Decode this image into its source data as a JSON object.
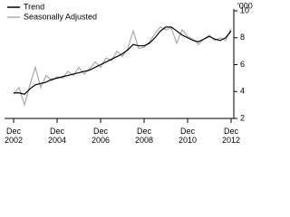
{
  "chart_data": {
    "type": "line",
    "y_label": "'000",
    "x": [
      2002.917,
      2003.167,
      2003.417,
      2003.667,
      2003.917,
      2004.167,
      2004.417,
      2004.667,
      2004.917,
      2005.167,
      2005.417,
      2005.667,
      2005.917,
      2006.167,
      2006.417,
      2006.667,
      2006.917,
      2007.167,
      2007.417,
      2007.667,
      2007.917,
      2008.167,
      2008.417,
      2008.667,
      2008.917,
      2009.167,
      2009.417,
      2009.667,
      2009.917,
      2010.167,
      2010.417,
      2010.667,
      2010.917,
      2011.167,
      2011.417,
      2011.667,
      2011.917,
      2012.167,
      2012.417,
      2012.667,
      2012.917
    ],
    "series": [
      {
        "name": "Trend",
        "color": "#000000",
        "values": [
          3.9,
          3.9,
          3.8,
          4.2,
          4.5,
          4.6,
          4.7,
          4.9,
          5.0,
          5.1,
          5.2,
          5.3,
          5.4,
          5.5,
          5.6,
          5.8,
          6.0,
          6.2,
          6.4,
          6.6,
          6.8,
          7.1,
          7.5,
          7.4,
          7.4,
          7.6,
          8.0,
          8.5,
          8.8,
          8.8,
          8.5,
          8.2,
          8.0,
          7.8,
          7.7,
          7.9,
          8.1,
          7.9,
          7.8,
          8.0,
          8.5
        ]
      },
      {
        "name": "Seasonally Adjusted",
        "color": "#aaaaaa",
        "values": [
          3.8,
          4.3,
          3.0,
          4.5,
          5.8,
          4.3,
          5.2,
          4.8,
          5.1,
          5.0,
          5.5,
          5.2,
          5.8,
          5.3,
          5.7,
          6.2,
          5.8,
          6.5,
          6.3,
          7.0,
          6.6,
          7.2,
          8.5,
          7.2,
          7.3,
          7.7,
          8.3,
          8.8,
          8.6,
          8.7,
          7.6,
          8.6,
          8.1,
          7.9,
          7.5,
          7.9,
          8.2,
          7.8,
          8.0,
          7.8,
          8.7
        ]
      }
    ],
    "xlim": [
      2002.917,
      2012.917
    ],
    "xticks": [
      {
        "value": 2002.917,
        "label": "Dec\n2002"
      },
      {
        "value": 2004.917,
        "label": "Dec\n2004"
      },
      {
        "value": 2006.917,
        "label": "Dec\n2006"
      },
      {
        "value": 2008.917,
        "label": "Dec\n2008"
      },
      {
        "value": 2010.917,
        "label": "Dec\n2010"
      },
      {
        "value": 2012.917,
        "label": "Dec\n2012"
      }
    ],
    "ylim": [
      2,
      10
    ],
    "yticks": [
      2,
      4,
      6,
      8,
      10
    ],
    "legend": "top-left",
    "grid": false
  }
}
